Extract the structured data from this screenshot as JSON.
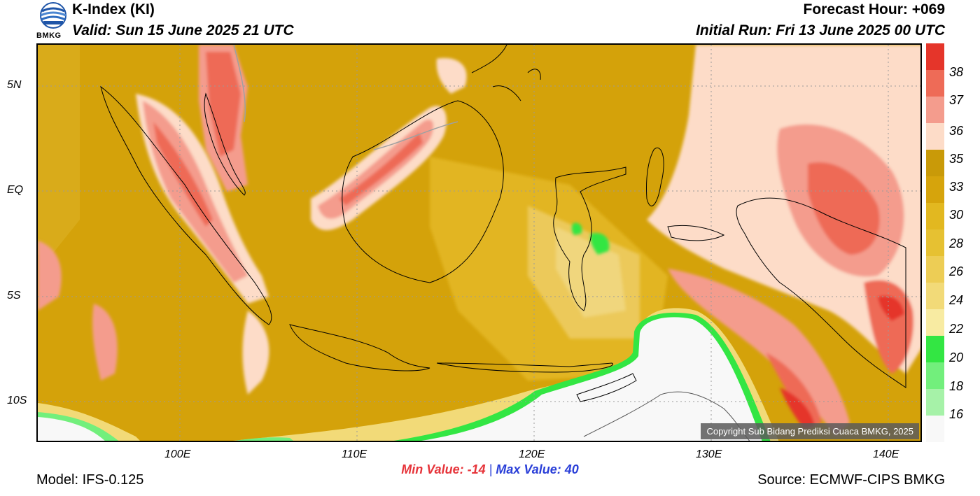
{
  "header": {
    "title": "K-Index (KI)",
    "valid": "Valid: Sun 15 June 2025 21 UTC",
    "forecast_hour": "Forecast Hour: +069",
    "initial_run": "Initial Run: Fri 13 June 2025 00 UTC",
    "logo_text": "BMKG"
  },
  "map": {
    "lat_labels": [
      "5N",
      "EQ",
      "5S",
      "10S"
    ],
    "lon_labels": [
      "100E",
      "110E",
      "120E",
      "130E",
      "140E"
    ],
    "copyright": "Copyright Sub Bidang Prediksi Cuaca BMKG, 2025",
    "colors": {
      "background": "#d4a20a",
      "low_values": "#f8f8f8"
    }
  },
  "colorbar": {
    "labels": [
      "38",
      "37",
      "36",
      "35",
      "33",
      "30",
      "28",
      "26",
      "24",
      "22",
      "20",
      "18",
      "16"
    ],
    "colors": [
      "#e5352a",
      "#ee6b57",
      "#f49c8d",
      "#fddcc8",
      "#c99a08",
      "#d6a40c",
      "#e2b820",
      "#e6c132",
      "#edcd55",
      "#f2da78",
      "#f8eba2",
      "#33e643",
      "#72ef7c",
      "#a6f2a8",
      "#f8f8f8"
    ]
  },
  "stats": {
    "min_label": "Min Value: -14",
    "separator": "|",
    "max_label": "Max Value:  40"
  },
  "footer": {
    "model": "Model: IFS-0.125",
    "source": "Source: ECMWF-CIPS BMKG"
  }
}
